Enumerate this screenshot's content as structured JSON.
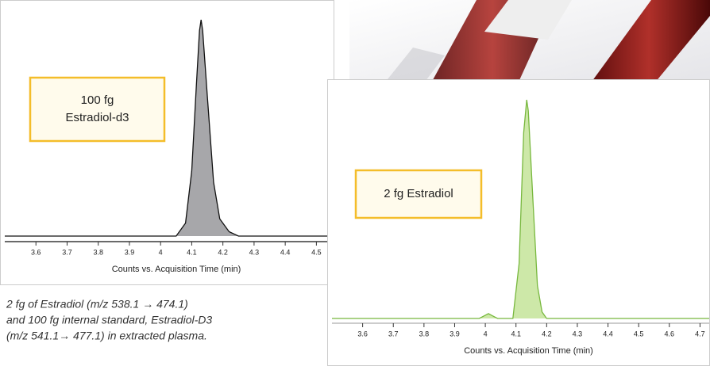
{
  "chart_data": [
    {
      "type": "area",
      "annotation": [
        "100 fg",
        "Estradiol-d3"
      ],
      "xlabel": "Counts vs. Acquisition Time (min)",
      "x": [
        3.5,
        4.05,
        4.08,
        4.1,
        4.115,
        4.125,
        4.13,
        4.135,
        4.15,
        4.17,
        4.19,
        4.22,
        4.25,
        4.55
      ],
      "values": [
        0,
        0,
        6,
        30,
        70,
        95,
        100,
        95,
        65,
        25,
        8,
        2,
        0,
        0
      ],
      "xlim": [
        3.5,
        4.55
      ],
      "ylim": [
        0,
        100
      ],
      "xticks": [
        3.6,
        3.7,
        3.8,
        3.9,
        4,
        4.1,
        4.2,
        4.3,
        4.4,
        4.5
      ],
      "color": "#a7a7aa",
      "line_color": "#111111"
    },
    {
      "type": "area",
      "annotation": [
        "2 fg Estradiol"
      ],
      "xlabel": "Counts vs. Acquisition Time (min)",
      "x": [
        3.5,
        3.98,
        4.0,
        4.01,
        4.02,
        4.04,
        4.09,
        4.11,
        4.125,
        4.135,
        4.14,
        4.155,
        4.17,
        4.185,
        4.2,
        4.73
      ],
      "values": [
        0,
        0,
        1.5,
        2.2,
        1.5,
        0,
        0,
        25,
        85,
        100,
        95,
        55,
        15,
        3,
        0,
        0
      ],
      "xlim": [
        3.5,
        4.73
      ],
      "ylim": [
        0,
        100
      ],
      "xticks": [
        3.6,
        3.7,
        3.8,
        3.9,
        4,
        4.1,
        4.2,
        4.3,
        4.4,
        4.5,
        4.6,
        4.7
      ],
      "color": "#cde8a8",
      "line_color": "#78b83e"
    }
  ],
  "caption": [
    "2 fg of Estradiol (m/z 538.1 → 474.1)",
    "and 100 fg internal standard, Estradiol-D3",
    "(m/z 541.1→ 477.1) in extracted plasma."
  ]
}
